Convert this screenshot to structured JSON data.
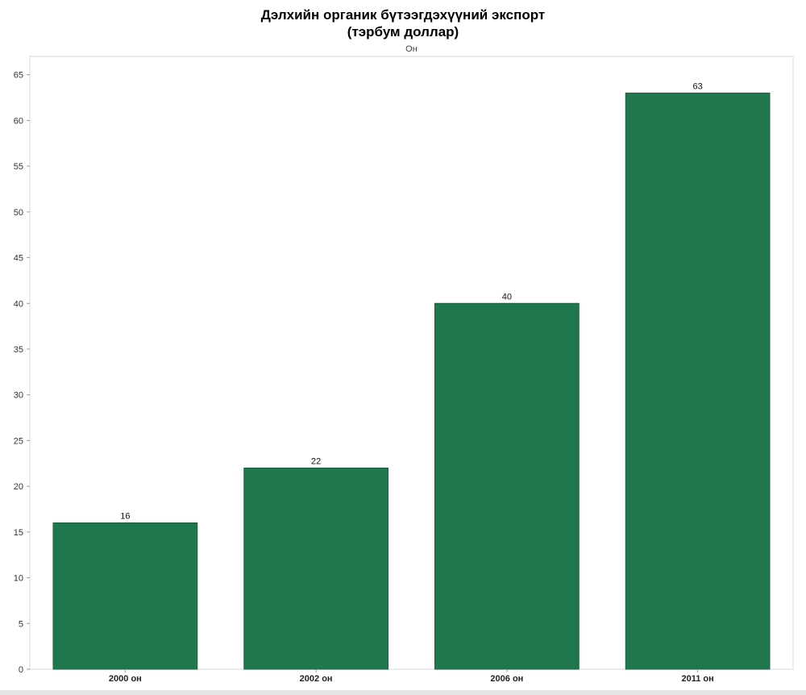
{
  "title_line1": "Дэлхийн органик бүтээгдэхүүний экспорт",
  "title_line2": "(тэрбум доллар)",
  "chart_data": {
    "type": "bar",
    "column_header": "Он",
    "categories": [
      "2000 он",
      "2002 он",
      "2006 он",
      "2011 он"
    ],
    "values": [
      16,
      22,
      40,
      63
    ],
    "yticks": [
      0,
      5,
      10,
      15,
      20,
      25,
      30,
      35,
      40,
      45,
      50,
      55,
      60,
      65
    ],
    "ylim": [
      0,
      67
    ],
    "bar_color": "#21774d",
    "grid": false,
    "legend": "none"
  }
}
